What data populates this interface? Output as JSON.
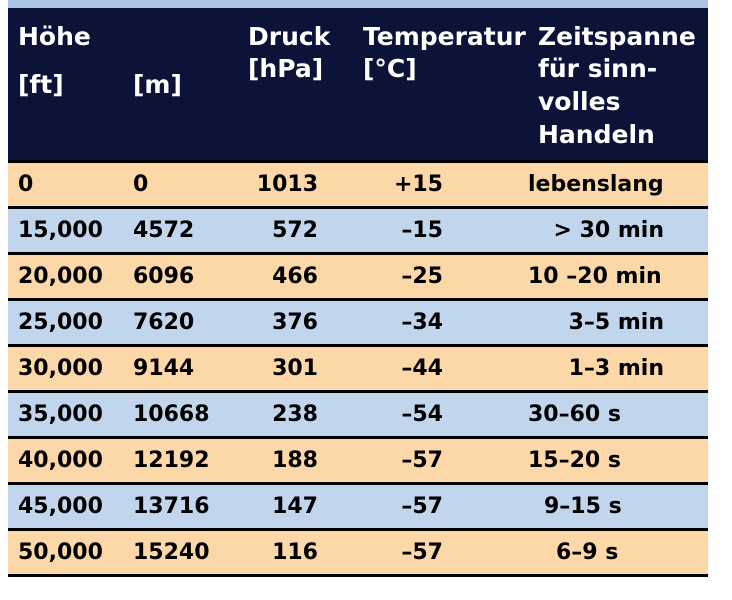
{
  "colors": {
    "header_bg": "#0b1438",
    "header_text": "#ffffff",
    "row_orange": "#fcd7a7",
    "row_blue": "#c1d5ec",
    "separator": "#000000"
  },
  "header": {
    "hoehe": "Höhe",
    "ft": "[ft]",
    "m": "[m]",
    "druck": "Druck",
    "druck_unit": "[hPa]",
    "temperatur": "Temperatur",
    "temperatur_unit": "[°C]",
    "zeit_1": "Zeitspanne",
    "zeit_2": "für sinn-",
    "zeit_3": "volles",
    "zeit_4": "Handeln"
  },
  "rows": [
    {
      "ft": "0",
      "m": "0",
      "druck": "1013",
      "temp": "+15",
      "zeit": "lebenslang",
      "align": "left"
    },
    {
      "ft": "15,000",
      "m": "4572",
      "druck": "572",
      "temp": "–15",
      "zeit": "> 30 min",
      "align": "right"
    },
    {
      "ft": "20,000",
      "m": "6096",
      "druck": "466",
      "temp": "–25",
      "zeit": "10 –20 min",
      "align": "left"
    },
    {
      "ft": "25,000",
      "m": "7620",
      "druck": "376",
      "temp": "–34",
      "zeit": "3–5 min",
      "align": "right"
    },
    {
      "ft": "30,000",
      "m": "9144",
      "druck": "301",
      "temp": "–44",
      "zeit": "1–3 min",
      "align": "right"
    },
    {
      "ft": "35,000",
      "m": "10668",
      "druck": "238",
      "temp": "–54",
      "zeit": "30–60 s",
      "align": "left"
    },
    {
      "ft": "40,000",
      "m": "12192",
      "druck": "188",
      "temp": "–57",
      "zeit": "15–20 s",
      "align": "left"
    },
    {
      "ft": "45,000",
      "m": "13716",
      "druck": "147",
      "temp": "–57",
      "zeit": "9–15 s",
      "align": "left"
    },
    {
      "ft": "50,000",
      "m": "15240",
      "druck": "116",
      "temp": "–57",
      "zeit": "6–9 s",
      "align": "left"
    }
  ]
}
